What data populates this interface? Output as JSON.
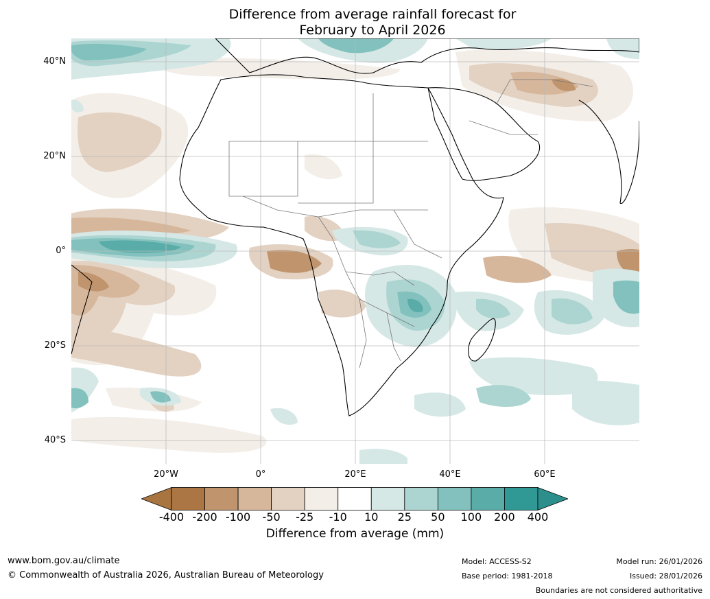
{
  "title": {
    "line1": "Difference from average rainfall forecast for",
    "line2": "February to April 2026"
  },
  "axes": {
    "lat_labels": [
      "40°N",
      "20°N",
      "0°",
      "20°S",
      "40°S"
    ],
    "lon_labels": [
      "20°W",
      "0°",
      "20°E",
      "40°E",
      "60°E"
    ]
  },
  "colorbar": {
    "ticks": [
      "-400",
      "-200",
      "-100",
      "-50",
      "-25",
      "-10",
      "10",
      "25",
      "50",
      "100",
      "200",
      "400"
    ],
    "colors": [
      "#a8743f",
      "#ab7643",
      "#c0956e",
      "#d6b79c",
      "#e3d1c1",
      "#f3eee8",
      "#ffffff",
      "#d5e8e6",
      "#acd5d2",
      "#82c1bd",
      "#5aaca8",
      "#319995",
      "#2d8f8b"
    ],
    "label": "Difference from average (mm)"
  },
  "footer": {
    "url": "www.bom.gov.au/climate",
    "copyright": "© Commonwealth of Australia 2026, Australian Bureau of Meteorology",
    "model": "Model: ACCESS-S2",
    "base_period": "Base period: 1981-2018",
    "model_run": "Model run: 26/01/2026",
    "issued": "Issued: 28/01/2026",
    "disclaimer": "Boundaries are not considered authoritative"
  }
}
